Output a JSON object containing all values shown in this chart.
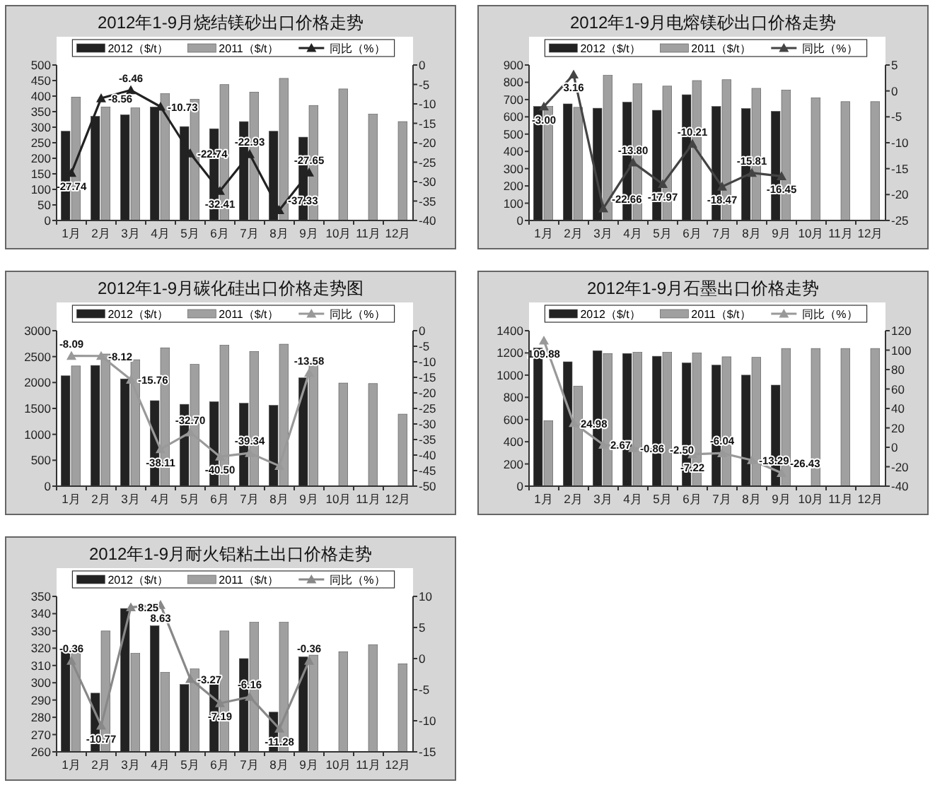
{
  "chart_data": [
    {
      "type": "bar",
      "title": "2012年1-9月烧结镁砂出口价格走势",
      "categories": [
        "1月",
        "2月",
        "3月",
        "4月",
        "5月",
        "6月",
        "7月",
        "8月",
        "9月",
        "10月",
        "11月",
        "12月"
      ],
      "legend": "top",
      "marker": "triangle",
      "ylim": [
        0,
        500
      ],
      "yticks": [
        0,
        50,
        100,
        150,
        200,
        250,
        300,
        350,
        400,
        450,
        500
      ],
      "y2lim": [
        -40,
        0
      ],
      "y2ticks": [
        -40,
        -35,
        -30,
        -25,
        -20,
        -15,
        -10,
        -5,
        0
      ],
      "series": [
        {
          "name": "2012（$/t）",
          "color": "#222222",
          "values": [
            287,
            335,
            340,
            365,
            302,
            295,
            318,
            287,
            268,
            null,
            null,
            null
          ]
        },
        {
          "name": "2011（$/t）",
          "color": "#a0a0a0",
          "values": [
            397,
            365,
            362,
            408,
            390,
            437,
            413,
            457,
            370,
            423,
            342,
            318
          ]
        },
        {
          "name": "同比（%）",
          "type": "line",
          "axis": "y2",
          "color": "#222222",
          "values": [
            -27.74,
            -8.56,
            -6.46,
            -10.73,
            -22.74,
            -32.41,
            -22.93,
            -37.33,
            -27.65,
            null,
            null,
            null
          ],
          "value_labels": [
            "-27.74",
            "-8.56",
            "-6.46",
            "-10.73",
            "-22.74",
            "-32.41",
            "-22.93",
            "-37.33",
            "-27.65",
            null,
            null,
            null
          ]
        }
      ]
    },
    {
      "type": "bar",
      "title": "2012年1-9月电熔镁砂出口价格走势",
      "categories": [
        "1月",
        "2月",
        "3月",
        "4月",
        "5月",
        "6月",
        "7月",
        "8月",
        "9月",
        "10月",
        "11月",
        "12月"
      ],
      "legend": "top",
      "marker": "triangle",
      "ylim": [
        0,
        900
      ],
      "yticks": [
        0,
        100,
        200,
        300,
        400,
        500,
        600,
        700,
        800,
        900
      ],
      "y2lim": [
        -25,
        5
      ],
      "y2ticks": [
        -25,
        -20,
        -15,
        -10,
        -5,
        0,
        5
      ],
      "series": [
        {
          "name": "2012（$/t）",
          "color": "#222222",
          "values": [
            660,
            675,
            650,
            685,
            638,
            728,
            660,
            648,
            632,
            null,
            null,
            null
          ]
        },
        {
          "name": "2011（$/t）",
          "color": "#a0a0a0",
          "values": [
            660,
            655,
            840,
            792,
            778,
            810,
            815,
            765,
            755,
            710,
            688,
            688
          ]
        },
        {
          "name": "同比（%）",
          "type": "line",
          "axis": "y2",
          "color": "#444444",
          "values": [
            -3.0,
            3.16,
            -22.66,
            -13.8,
            -17.97,
            -10.21,
            -18.47,
            -15.81,
            -16.45,
            null,
            null,
            null
          ],
          "value_labels": [
            "-3.00",
            "3.16",
            "-22.66",
            "-13.80",
            "-17.97",
            "-10.21",
            "-18.47",
            "-15.81",
            "-16.45",
            null,
            null,
            null
          ]
        }
      ]
    },
    {
      "type": "bar",
      "title": "2012年1-9月碳化硅出口价格走势图",
      "categories": [
        "1月",
        "2月",
        "3月",
        "4月",
        "5月",
        "6月",
        "7月",
        "8月",
        "9月",
        "10月",
        "11月",
        "12月"
      ],
      "legend": "top",
      "marker": "triangle",
      "ylim": [
        0,
        3000
      ],
      "yticks": [
        0,
        500,
        1000,
        1500,
        2000,
        2500,
        3000
      ],
      "y2lim": [
        -50,
        0
      ],
      "y2ticks": [
        -50,
        -45,
        -40,
        -35,
        -30,
        -25,
        -20,
        -15,
        -10,
        -5,
        0
      ],
      "series": [
        {
          "name": "2012（$/t）",
          "color": "#222222",
          "values": [
            2130,
            2330,
            2070,
            1650,
            1580,
            1630,
            1600,
            1560,
            2090,
            null,
            null,
            null
          ]
        },
        {
          "name": "2011（$/t）",
          "color": "#a0a0a0",
          "values": [
            2320,
            2550,
            2440,
            2670,
            2350,
            2720,
            2600,
            2740,
            2400,
            1990,
            1980,
            1390
          ]
        },
        {
          "name": "同比（%）",
          "type": "line",
          "axis": "y2",
          "color": "#999999",
          "values": [
            -8.09,
            -8.12,
            -15.76,
            -38.11,
            -32.7,
            -40.5,
            -39.34,
            -43.5,
            -13.58,
            null,
            null,
            null
          ],
          "value_labels": [
            "-8.09",
            "-8.12",
            "-15.76",
            "-38.11",
            "-32.70",
            "-40.50",
            "-39.34",
            null,
            "-13.58",
            null,
            null,
            null
          ]
        }
      ]
    },
    {
      "type": "bar",
      "title": "2012年1-9月石墨出口价格走势",
      "categories": [
        "1月",
        "2月",
        "3月",
        "4月",
        "5月",
        "6月",
        "7月",
        "8月",
        "9月",
        "10月",
        "11月",
        "12月"
      ],
      "legend": "top",
      "marker": "triangle",
      "ylim": [
        0,
        1400
      ],
      "yticks": [
        0,
        200,
        400,
        600,
        800,
        1000,
        1200,
        1400
      ],
      "y2lim": [
        -40,
        120
      ],
      "y2ticks": [
        -40,
        -20,
        0,
        20,
        40,
        60,
        80,
        100,
        120
      ],
      "series": [
        {
          "name": "2012（$/t）",
          "color": "#222222",
          "values": [
            1245,
            1120,
            1220,
            1195,
            1170,
            1110,
            1090,
            1000,
            910,
            null,
            null,
            null
          ]
        },
        {
          "name": "2011（$/t）",
          "color": "#a0a0a0",
          "values": [
            590,
            900,
            1195,
            1205,
            1205,
            1200,
            1165,
            1160,
            1240,
            1240,
            1240,
            1240
          ]
        },
        {
          "name": "同比（%）",
          "type": "line",
          "axis": "y2",
          "color": "#999999",
          "values": [
            109.88,
            24.98,
            2.67,
            -0.86,
            -2.5,
            -7.22,
            -6.04,
            -13.29,
            -26.43,
            null,
            null,
            null
          ],
          "value_labels": [
            "109.88",
            "24.98",
            "2.67",
            "-0.86",
            "-2.50",
            "-7.22",
            "-6.04",
            "-13.29",
            "-26.43",
            null,
            null,
            null
          ]
        }
      ]
    },
    {
      "type": "bar",
      "title": "2012年1-9月耐火铝粘土出口价格走势",
      "categories": [
        "1月",
        "2月",
        "3月",
        "4月",
        "5月",
        "6月",
        "7月",
        "8月",
        "9月",
        "10月",
        "11月",
        "12月"
      ],
      "legend": "top",
      "marker": "triangle",
      "ylim": [
        260,
        350
      ],
      "yticks": [
        260,
        270,
        280,
        290,
        300,
        310,
        320,
        330,
        340,
        350
      ],
      "y2lim": [
        -15,
        10
      ],
      "y2ticks": [
        -15,
        -10,
        -5,
        0,
        5,
        10
      ],
      "series": [
        {
          "name": "2012（$/t）",
          "color": "#222222",
          "values": [
            318,
            294,
            343,
            333,
            299,
            300,
            314,
            283,
            315,
            null,
            null,
            null
          ]
        },
        {
          "name": "2011（$/t）",
          "color": "#a0a0a0",
          "values": [
            320,
            330,
            317,
            306,
            308,
            330,
            335,
            335,
            316,
            318,
            322,
            311
          ]
        },
        {
          "name": "同比（%）",
          "type": "line",
          "axis": "y2",
          "color": "#888888",
          "values": [
            -0.36,
            -10.77,
            8.25,
            8.63,
            -3.27,
            -7.19,
            -6.16,
            -11.28,
            -0.36,
            null,
            null,
            null
          ],
          "value_labels": [
            "-0.36",
            "-10.77",
            "8.25",
            "8.63",
            "-3.27",
            "-7.19",
            "-6.16",
            "-11.28",
            "-0.36",
            null,
            null,
            null
          ]
        }
      ]
    }
  ]
}
